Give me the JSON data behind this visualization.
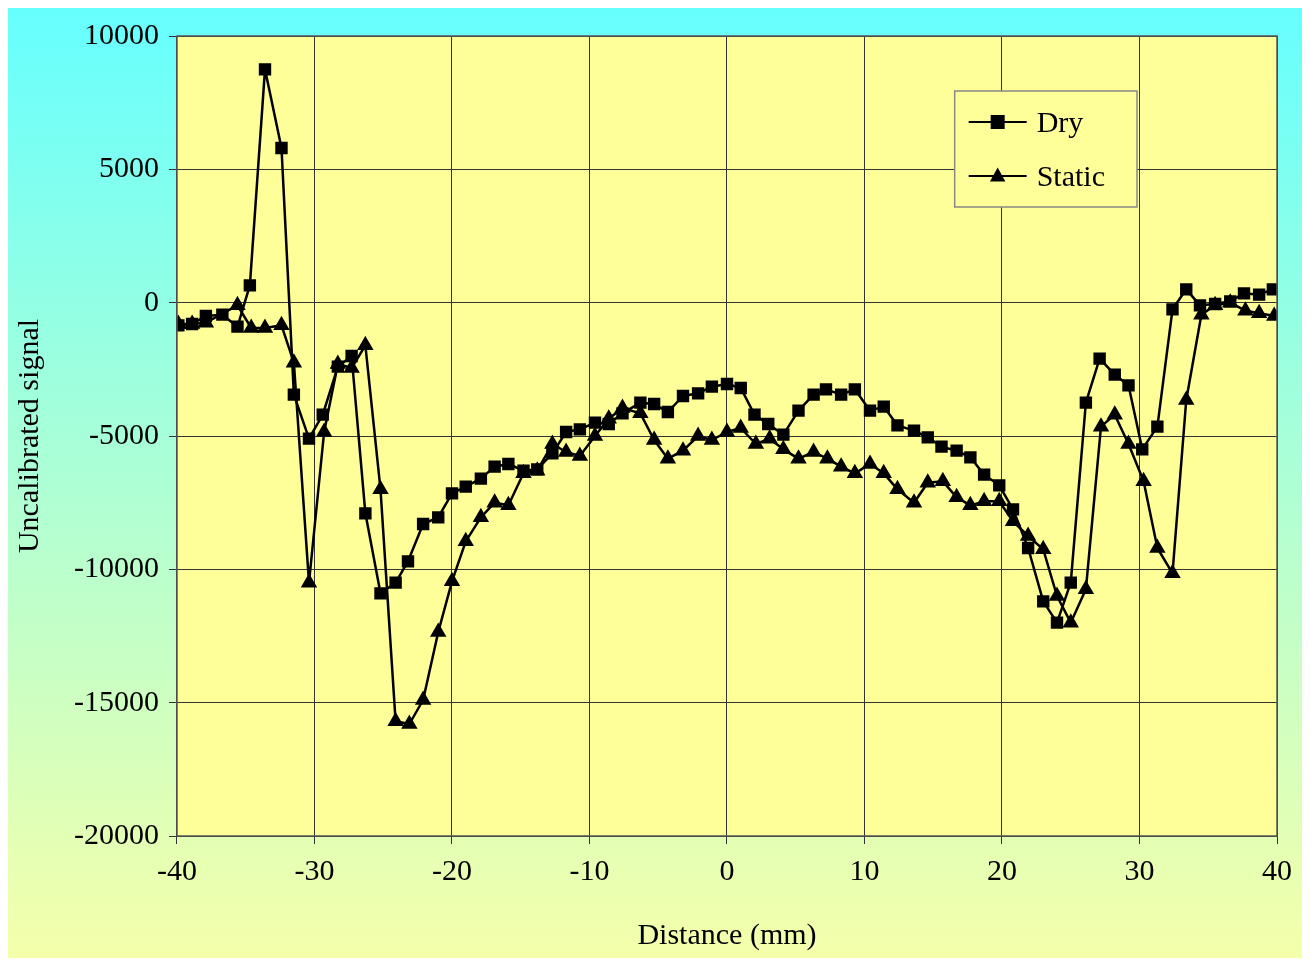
{
  "chart_data": {
    "type": "line",
    "xlabel": "Distance (mm)",
    "ylabel": "Uncalibrated signal",
    "xlim": [
      -40,
      40
    ],
    "xticks": [
      -40,
      -30,
      -20,
      -10,
      0,
      10,
      20,
      30,
      40
    ],
    "ylim": [
      -20000,
      10000
    ],
    "yticks": [
      -20000,
      -15000,
      -10000,
      -5000,
      0,
      5000,
      10000
    ],
    "grid": true,
    "legend": "top right",
    "line_style": "solid",
    "series": [
      {
        "name": "Dry",
        "color": "#000000",
        "marker": "square",
        "x": [
          -39.9,
          -38.9,
          -37.9,
          -36.7,
          -35.6,
          -34.7,
          -33.6,
          -32.4,
          -31.5,
          -30.4,
          -29.4,
          -28.3,
          -27.3,
          -26.3,
          -25.2,
          -24.1,
          -23.2,
          -22.1,
          -21,
          -20,
          -19,
          -17.9,
          -16.9,
          -15.9,
          -14.8,
          -13.8,
          -12.7,
          -11.7,
          -10.7,
          -9.6,
          -8.6,
          -7.6,
          -6.3,
          -5.3,
          -4.3,
          -3.2,
          -2.1,
          -1.1,
          0,
          1,
          2,
          3,
          4.1,
          5.2,
          6.3,
          7.2,
          8.3,
          9.3,
          10.4,
          11.4,
          12.4,
          13.6,
          14.6,
          15.6,
          16.7,
          17.7,
          18.7,
          19.8,
          20.8,
          21.9,
          23,
          24,
          25,
          26.1,
          27.1,
          28.2,
          29.2,
          30.2,
          31.3,
          32.4,
          33.4,
          34.4,
          35.5,
          36.6,
          37.6,
          38.7,
          39.7
        ],
        "values": [
          -850,
          -800,
          -500,
          -450,
          -900,
          650,
          8750,
          5800,
          -3450,
          -5100,
          -4200,
          -2400,
          -2000,
          -7900,
          -10900,
          -10500,
          -9700,
          -8300,
          -8050,
          -7150,
          -6900,
          -6600,
          -6150,
          -6050,
          -6300,
          -6250,
          -5650,
          -4850,
          -4750,
          -4500,
          -4550,
          -4150,
          -3750,
          -3800,
          -4100,
          -3500,
          -3400,
          -3150,
          -3050,
          -3200,
          -4200,
          -4550,
          -4950,
          -4050,
          -3450,
          -3250,
          -3450,
          -3250,
          -4050,
          -3900,
          -4600,
          -4800,
          -5050,
          -5400,
          -5550,
          -5800,
          -6450,
          -6850,
          -7750,
          -9200,
          -11200,
          -12000,
          -10500,
          -3750,
          -2100,
          -2700,
          -3100,
          -5500,
          -4650,
          -250,
          500,
          -100,
          -50,
          50,
          350,
          300,
          500
        ]
      },
      {
        "name": "Static",
        "color": "#000000",
        "marker": "triangle",
        "x": [
          -39.9,
          -38.9,
          -37.9,
          -35.6,
          -34.6,
          -33.6,
          -32.4,
          -31.5,
          -30.4,
          -29.3,
          -28.3,
          -27.3,
          -26.3,
          -25.2,
          -24.1,
          -23.1,
          -22.1,
          -21,
          -20,
          -19,
          -17.9,
          -16.9,
          -15.9,
          -14.8,
          -13.8,
          -12.7,
          -11.7,
          -10.7,
          -9.6,
          -8.6,
          -7.6,
          -6.3,
          -5.3,
          -4.3,
          -3.2,
          -2.1,
          -1.1,
          0,
          1,
          2.1,
          3.1,
          4.1,
          5.2,
          6.3,
          7.3,
          8.3,
          9.3,
          10.4,
          11.4,
          12.4,
          13.6,
          14.6,
          15.7,
          16.7,
          17.7,
          18.7,
          19.8,
          20.8,
          21.9,
          23,
          24,
          25,
          26.1,
          27.2,
          28.2,
          29.2,
          30.3,
          31.3,
          32.4,
          33.4,
          34.5,
          35.5,
          36.6,
          37.7,
          38.7,
          39.8
        ],
        "values": [
          -800,
          -800,
          -750,
          -100,
          -950,
          -950,
          -850,
          -2250,
          -10500,
          -4850,
          -2300,
          -2450,
          -1600,
          -7000,
          -15700,
          -15800,
          -14900,
          -12350,
          -10450,
          -8950,
          -8050,
          -7500,
          -7600,
          -6400,
          -6300,
          -5300,
          -5600,
          -5750,
          -5000,
          -4350,
          -3950,
          -4150,
          -5150,
          -5850,
          -5550,
          -5000,
          -5150,
          -4850,
          -4700,
          -5300,
          -5100,
          -5500,
          -5850,
          -5600,
          -5850,
          -6150,
          -6400,
          -6050,
          -6400,
          -7000,
          -7500,
          -6750,
          -6700,
          -7300,
          -7600,
          -7450,
          -7450,
          -8200,
          -8750,
          -9250,
          -11000,
          -12000,
          -10750,
          -4650,
          -4200,
          -5300,
          -6700,
          -9200,
          -10150,
          -3650,
          -450,
          -100,
          0,
          -300,
          -400,
          -500
        ]
      }
    ]
  }
}
